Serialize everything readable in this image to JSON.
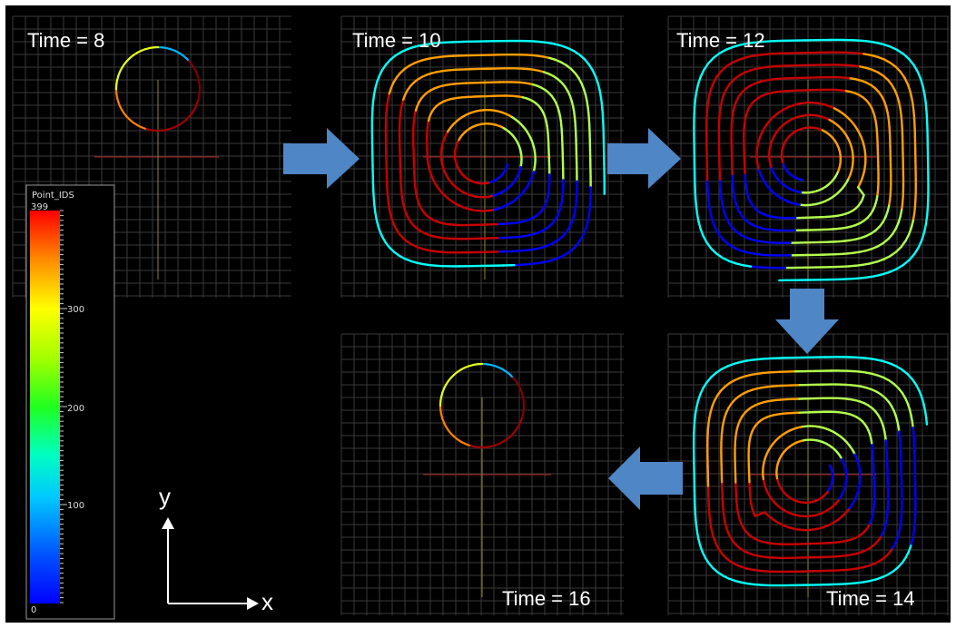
{
  "panels": [
    {
      "id": "t8",
      "label": "Time = 8",
      "pattern": "circle"
    },
    {
      "id": "t10",
      "label": "Time = 10",
      "pattern": "spiral"
    },
    {
      "id": "t12",
      "label": "Time = 12",
      "pattern": "spiral"
    },
    {
      "id": "t14",
      "label": "Time = 14",
      "pattern": "spiral"
    },
    {
      "id": "t16",
      "label": "Time = 16",
      "pattern": "circle"
    }
  ],
  "colorbar": {
    "title": "Point_IDS",
    "ticks": [
      "0",
      "100",
      "200",
      "300",
      "399"
    ],
    "min": 0,
    "max": 399
  },
  "axes": {
    "y_label": "y",
    "x_label": "x"
  },
  "colors": {
    "background": "#000000",
    "frame": "#ffffff",
    "grid": "#3a3a3a",
    "arrow": "#4f86c6",
    "axis_guide_red": "#b01e1e",
    "axis_guide_yellow": "#8a8a1a"
  },
  "arrows": [
    {
      "from": "t8",
      "to": "t10",
      "direction": "right"
    },
    {
      "from": "t10",
      "to": "t12",
      "direction": "right"
    },
    {
      "from": "t12",
      "to": "t14",
      "direction": "down"
    },
    {
      "from": "t14",
      "to": "t16",
      "direction": "left"
    }
  ]
}
